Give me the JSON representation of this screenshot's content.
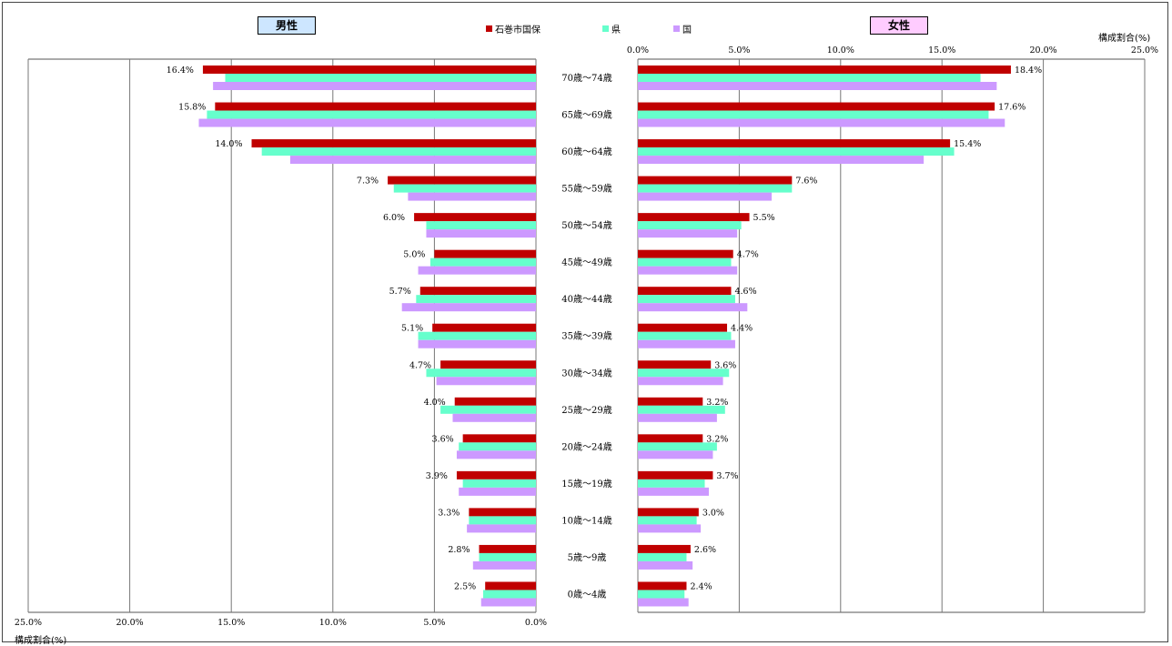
{
  "labels": {
    "male": "男性",
    "female": "女性",
    "axis_unit": "構成割合(%)"
  },
  "colors": {
    "石巻市国保": "#c00000",
    "県": "#66ffcc",
    "国": "#cc99ff"
  },
  "chart_data": {
    "type": "bar",
    "orientation": "horizontal-population-pyramid",
    "categories": [
      "70歳～74歳",
      "65歳～69歳",
      "60歳～64歳",
      "55歳～59歳",
      "50歳～54歳",
      "45歳～49歳",
      "40歳～44歳",
      "35歳～39歳",
      "30歳～34歳",
      "25歳～29歳",
      "20歳～24歳",
      "15歳～19歳",
      "10歳～14歳",
      "5歳～9歳",
      "0歳～4歳"
    ],
    "x_ticks": [
      "0.0%",
      "5.0%",
      "10.0%",
      "15.0%",
      "20.0%",
      "25.0%"
    ],
    "xlim": [
      0,
      25
    ],
    "grid": true,
    "legend_position": "top-center",
    "male": {
      "series": [
        {
          "name": "石巻市国保",
          "values": [
            16.4,
            15.8,
            14.0,
            7.3,
            6.0,
            5.0,
            5.7,
            5.1,
            4.7,
            4.0,
            3.6,
            3.9,
            3.3,
            2.8,
            2.5
          ],
          "labels": [
            "16.4%",
            "15.8%",
            "14.0%",
            "7.3%",
            "6.0%",
            "5.0%",
            "5.7%",
            "5.1%",
            "4.7%",
            "4.0%",
            "3.6%",
            "3.9%",
            "3.3%",
            "2.8%",
            "2.5%"
          ]
        },
        {
          "name": "県",
          "values": [
            15.3,
            16.2,
            13.5,
            7.0,
            5.4,
            5.2,
            5.9,
            5.8,
            5.4,
            4.7,
            3.8,
            3.6,
            3.3,
            2.8,
            2.6
          ]
        },
        {
          "name": "国",
          "values": [
            15.9,
            16.6,
            12.1,
            6.3,
            5.4,
            5.8,
            6.6,
            5.8,
            4.9,
            4.1,
            3.9,
            3.8,
            3.4,
            3.1,
            2.7
          ]
        }
      ]
    },
    "female": {
      "series": [
        {
          "name": "石巻市国保",
          "values": [
            18.4,
            17.6,
            15.4,
            7.6,
            5.5,
            4.7,
            4.6,
            4.4,
            3.6,
            3.2,
            3.2,
            3.7,
            3.0,
            2.6,
            2.4
          ],
          "labels": [
            "18.4%",
            "17.6%",
            "15.4%",
            "7.6%",
            "5.5%",
            "4.7%",
            "4.6%",
            "4.4%",
            "3.6%",
            "3.2%",
            "3.2%",
            "3.7%",
            "3.0%",
            "2.6%",
            "2.4%"
          ]
        },
        {
          "name": "県",
          "values": [
            16.9,
            17.3,
            15.6,
            7.6,
            5.1,
            4.6,
            4.8,
            4.6,
            4.5,
            4.3,
            3.9,
            3.3,
            2.9,
            2.4,
            2.3
          ]
        },
        {
          "name": "国",
          "values": [
            17.7,
            18.1,
            14.1,
            6.6,
            4.9,
            4.9,
            5.4,
            4.8,
            4.2,
            3.9,
            3.7,
            3.5,
            3.1,
            2.7,
            2.5
          ]
        }
      ]
    }
  }
}
